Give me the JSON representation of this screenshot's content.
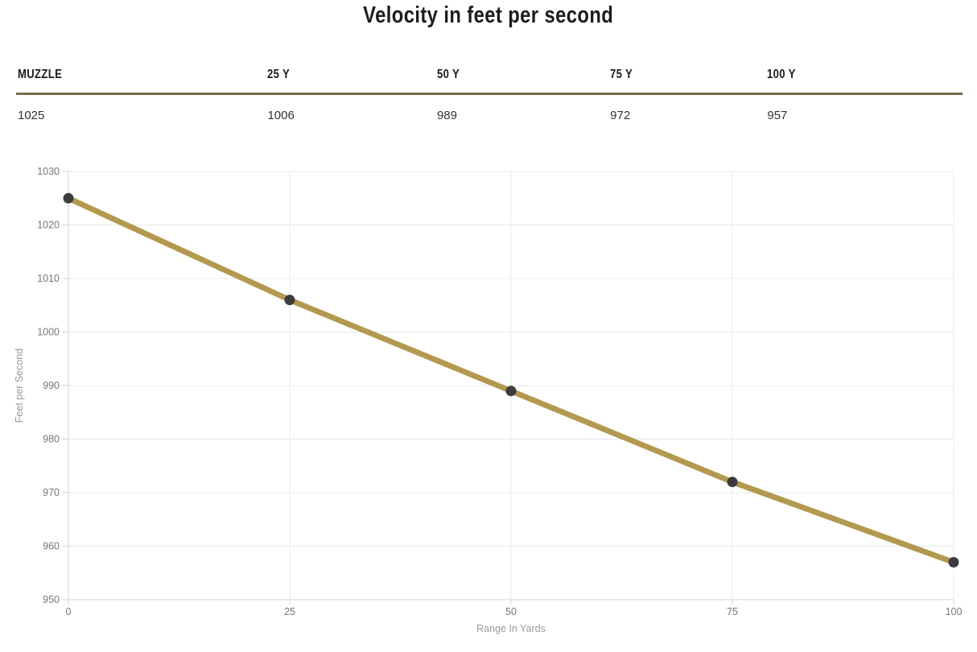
{
  "title": "Velocity in feet per second",
  "table": {
    "border_color": "#7a6c48",
    "columns": [
      {
        "header": "MUZZLE",
        "value": "1025"
      },
      {
        "header": "25 Y",
        "value": "1006"
      },
      {
        "header": "50 Y",
        "value": "989"
      },
      {
        "header": "75 Y",
        "value": "972"
      },
      {
        "header": "100 Y",
        "value": "957"
      }
    ]
  },
  "chart_data": {
    "type": "line",
    "title": "Velocity in feet per second",
    "x": [
      0,
      25,
      50,
      75,
      100
    ],
    "series": [
      {
        "name": "Velocity",
        "values": [
          1025,
          1006,
          989,
          972,
          957
        ]
      }
    ],
    "xlabel": "Range In Yards",
    "ylabel": "Feet per Second",
    "xlim": [
      0,
      100
    ],
    "ylim": [
      950,
      1030
    ],
    "x_ticks": [
      0,
      25,
      50,
      75,
      100
    ],
    "y_ticks": [
      950,
      960,
      970,
      980,
      990,
      1000,
      1010,
      1020,
      1030
    ],
    "grid": true,
    "legend": false,
    "line_color": "#b3994f",
    "point_color": "#3c3c3e",
    "grid_color": "#e8e8e8",
    "axis_color": "#d4d4d4",
    "tick_label_color": "#757575",
    "axis_title_color": "#999999"
  }
}
